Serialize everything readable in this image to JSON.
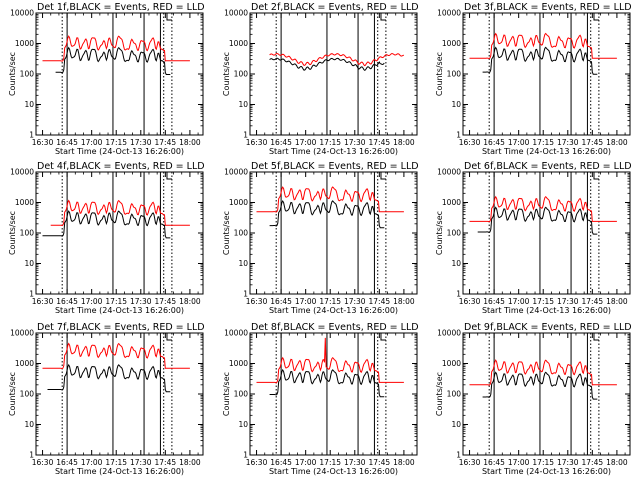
{
  "colors": {
    "events": "#000000",
    "lld": "#ff0000",
    "axes": "#000000",
    "background": "#ffffff"
  },
  "chart_data": {
    "type": "line",
    "grid": false,
    "log_y": true,
    "ylim": [
      1,
      10000
    ],
    "y_ticks": [
      "1",
      "10",
      "100",
      "1000",
      "10000"
    ],
    "x_ticks": [
      "16:30",
      "16:45",
      "17:00",
      "17:15",
      "17:30",
      "17:45",
      "18:00"
    ],
    "x_tick_minutes": [
      990,
      1005,
      1020,
      1035,
      1050,
      1065,
      1080
    ],
    "xlim_minutes": [
      986,
      1088
    ],
    "ylabel": "Counts/sec",
    "xlabel": "Start Time (24-Oct-13 16:26:00)",
    "series_names": {
      "events": "BLACK = Events",
      "lld": "RED = LLD"
    },
    "vertical_lines": {
      "dotted": [
        "16:42",
        "17:44",
        "17:49"
      ],
      "solid": [
        "16:45",
        "17:13",
        "17:32",
        "17:42"
      ]
    },
    "panels": [
      {
        "title": "Det 1f,BLACK = Events, RED = LLD",
        "lld_base": 270,
        "events_ratio": 0.42,
        "events_start": "16:38",
        "lld_start": "16:30",
        "wavy": false,
        "bump": false
      },
      {
        "title": "Det 2f,BLACK = Events, RED = LLD",
        "lld_base": 330,
        "events_ratio": 0.7,
        "events_start": "16:38",
        "lld_start": "16:38",
        "wavy": true,
        "bump": false
      },
      {
        "title": "Det 3f,BLACK = Events, RED = LLD",
        "lld_base": 330,
        "events_ratio": 0.35,
        "events_start": "16:38",
        "lld_start": "16:30",
        "wavy": false,
        "bump": false
      },
      {
        "title": "Det 4f,BLACK = Events, RED = LLD",
        "lld_base": 180,
        "events_ratio": 0.45,
        "events_start": "16:30",
        "lld_start": "16:35",
        "wavy": false,
        "bump": false
      },
      {
        "title": "Det 5f,BLACK = Events, RED = LLD",
        "lld_base": 500,
        "events_ratio": 0.35,
        "events_start": "16:38",
        "lld_start": "16:30",
        "wavy": false,
        "bump": false
      },
      {
        "title": "Det 6f,BLACK = Events, RED = LLD",
        "lld_base": 240,
        "events_ratio": 0.45,
        "events_start": "16:35",
        "lld_start": "16:30",
        "wavy": false,
        "bump": false
      },
      {
        "title": "Det 7f,BLACK = Events, RED = LLD",
        "lld_base": 700,
        "events_ratio": 0.2,
        "events_start": "16:33",
        "lld_start": "16:30",
        "wavy": false,
        "bump": false
      },
      {
        "title": "Det 8f,BLACK = Events, RED = LLD",
        "lld_base": 240,
        "events_ratio": 0.4,
        "events_start": "16:38",
        "lld_start": "16:30",
        "wavy": false,
        "bump": true
      },
      {
        "title": "Det 9f,BLACK = Events, RED = LLD",
        "lld_base": 200,
        "events_ratio": 0.4,
        "events_start": "16:38",
        "lld_start": "16:30",
        "wavy": false,
        "bump": false
      }
    ]
  }
}
